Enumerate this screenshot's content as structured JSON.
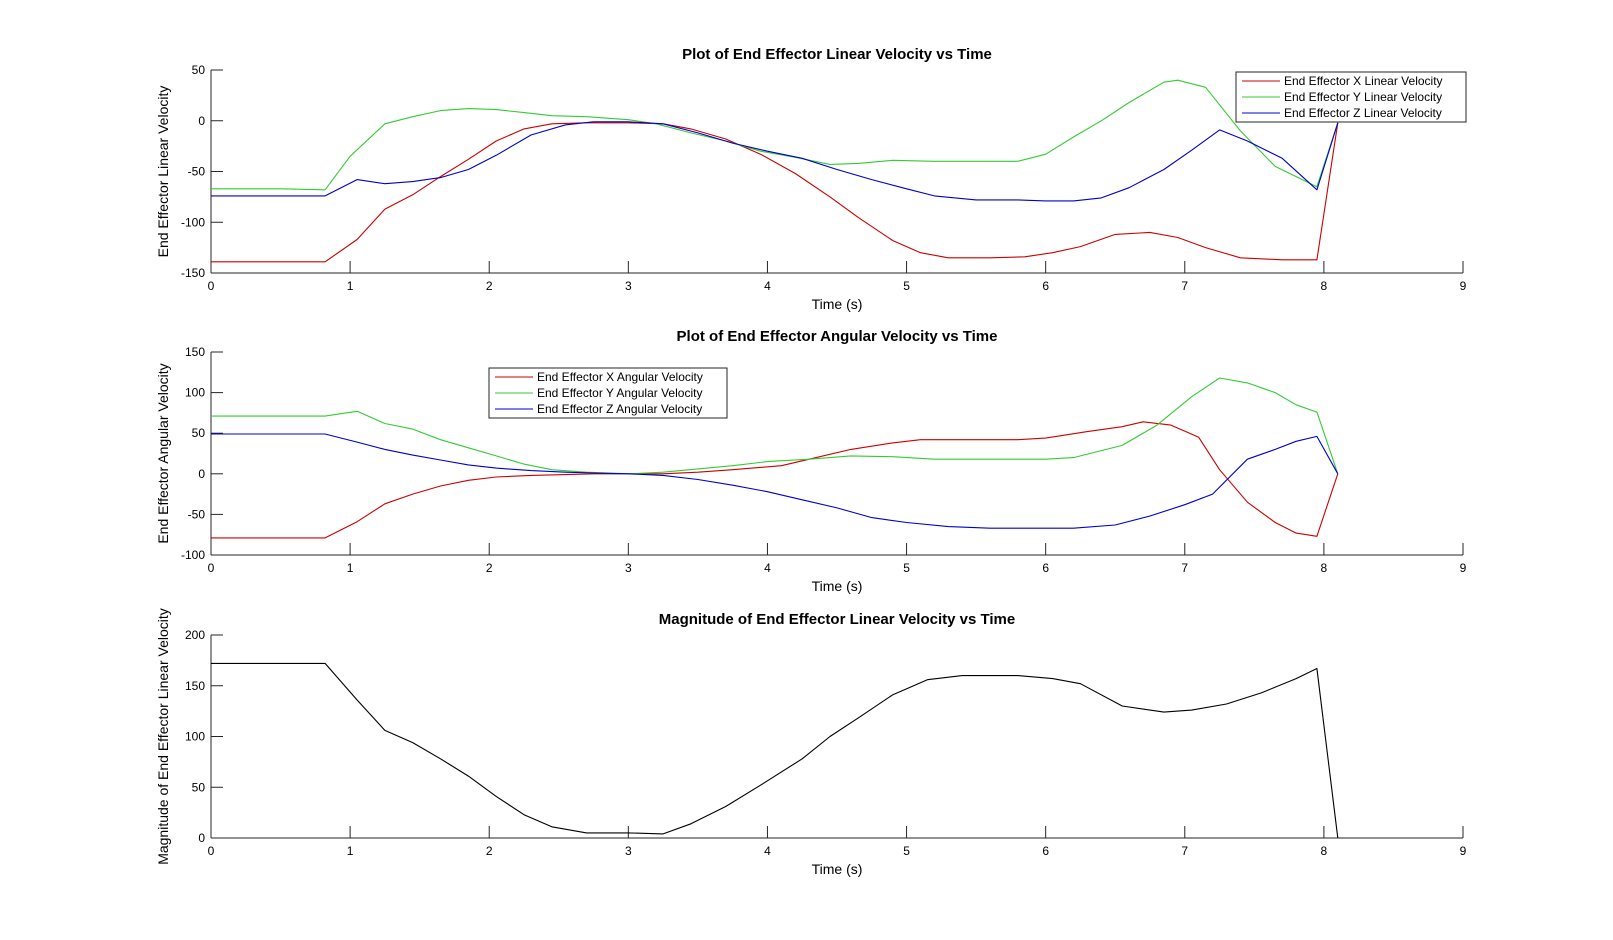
{
  "chart_data": [
    {
      "type": "line",
      "title": "Plot of End Effector Linear Velocity vs Time",
      "xlabel": "Time (s)",
      "ylabel": "End Effector Linear Velocity",
      "xlim": [
        0,
        9
      ],
      "ylim": [
        -150,
        50
      ],
      "xticks": [
        0,
        1,
        2,
        3,
        4,
        5,
        6,
        7,
        8,
        9
      ],
      "yticks": [
        -150,
        -100,
        -50,
        0,
        50
      ],
      "legend_position": "top-right",
      "series": [
        {
          "name": "End Effector X Linear Velocity",
          "color": "#cc0000",
          "x": [
            0,
            0.82,
            1.05,
            1.25,
            1.45,
            1.65,
            1.85,
            2.05,
            2.25,
            2.45,
            2.7,
            3.0,
            3.25,
            3.45,
            3.7,
            3.95,
            4.2,
            4.45,
            4.65,
            4.9,
            5.1,
            5.3,
            5.6,
            5.85,
            6.05,
            6.25,
            6.5,
            6.75,
            6.95,
            7.15,
            7.4,
            7.7,
            7.95,
            8.1
          ],
          "y": [
            -139,
            -139,
            -117,
            -87,
            -73,
            -55,
            -38,
            -20,
            -8,
            -3,
            -2,
            -2,
            -3,
            -8,
            -18,
            -33,
            -52,
            -75,
            -95,
            -118,
            -130,
            -135,
            -135,
            -134,
            -130,
            -124,
            -112,
            -110,
            -115,
            -125,
            -135,
            -137,
            -137,
            -2
          ]
        },
        {
          "name": "End Effector Y Linear Velocity",
          "color": "#33cc33",
          "x": [
            0,
            0.5,
            0.82,
            1.0,
            1.25,
            1.45,
            1.65,
            1.85,
            2.05,
            2.25,
            2.45,
            2.7,
            3.0,
            3.2,
            3.45,
            3.7,
            3.95,
            4.2,
            4.45,
            4.65,
            4.9,
            5.2,
            5.5,
            5.8,
            6.0,
            6.2,
            6.4,
            6.6,
            6.85,
            6.95,
            7.15,
            7.4,
            7.65,
            7.95,
            8.1
          ],
          "y": [
            -67,
            -67,
            -68,
            -35,
            -3,
            4,
            10,
            12,
            11,
            8,
            5,
            4,
            1,
            -3,
            -12,
            -20,
            -30,
            -36,
            -43,
            -42,
            -39,
            -40,
            -40,
            -40,
            -33,
            -16,
            0,
            18,
            38,
            40,
            33,
            -10,
            -45,
            -65,
            -2
          ]
        },
        {
          "name": "End Effector Z Linear Velocity",
          "color": "#0000cc",
          "x": [
            0,
            0.82,
            1.05,
            1.25,
            1.45,
            1.65,
            1.85,
            2.05,
            2.3,
            2.55,
            2.75,
            3.0,
            3.25,
            3.5,
            3.75,
            4.0,
            4.25,
            4.5,
            4.75,
            5.0,
            5.2,
            5.5,
            5.8,
            6.0,
            6.2,
            6.4,
            6.6,
            6.85,
            7.05,
            7.25,
            7.45,
            7.7,
            7.95,
            8.1
          ],
          "y": [
            -74,
            -74,
            -58,
            -62,
            -60,
            -56,
            -48,
            -34,
            -14,
            -4,
            -1,
            -1,
            -3,
            -12,
            -22,
            -30,
            -37,
            -48,
            -58,
            -67,
            -74,
            -78,
            -78,
            -79,
            -79,
            -76,
            -66,
            -48,
            -29,
            -9,
            -20,
            -37,
            -68,
            -2
          ]
        }
      ]
    },
    {
      "type": "line",
      "title": "Plot of End Effector Angular Velocity vs Time",
      "xlabel": "Time (s)",
      "ylabel": "End Effector Angular Velocity",
      "xlim": [
        0,
        9
      ],
      "ylim": [
        -100,
        150
      ],
      "xticks": [
        0,
        1,
        2,
        3,
        4,
        5,
        6,
        7,
        8,
        9
      ],
      "yticks": [
        -100,
        -50,
        0,
        50,
        100,
        150
      ],
      "legend_position": "top-left",
      "series": [
        {
          "name": "End Effector X Angular Velocity",
          "color": "#cc0000",
          "x": [
            0,
            0.82,
            1.05,
            1.25,
            1.45,
            1.65,
            1.85,
            2.05,
            2.3,
            2.55,
            2.75,
            3.0,
            3.25,
            3.5,
            3.75,
            4.1,
            4.3,
            4.6,
            4.9,
            5.1,
            5.4,
            5.8,
            6.0,
            6.3,
            6.55,
            6.7,
            6.9,
            7.1,
            7.25,
            7.45,
            7.65,
            7.8,
            7.95,
            8.1
          ],
          "y": [
            -79,
            -79,
            -59,
            -37,
            -25,
            -15,
            -8,
            -4,
            -2,
            -1,
            0,
            0,
            0,
            2,
            5,
            10,
            18,
            30,
            38,
            42,
            42,
            42,
            44,
            52,
            58,
            64,
            60,
            45,
            5,
            -35,
            -60,
            -73,
            -77,
            0
          ]
        },
        {
          "name": "End Effector Y Angular Velocity",
          "color": "#33cc33",
          "x": [
            0,
            0.5,
            0.82,
            1.05,
            1.25,
            1.45,
            1.65,
            1.85,
            2.05,
            2.25,
            2.45,
            2.7,
            3.0,
            3.25,
            3.5,
            3.75,
            4.0,
            4.3,
            4.6,
            4.9,
            5.2,
            5.5,
            5.8,
            6.0,
            6.2,
            6.55,
            6.8,
            7.05,
            7.25,
            7.45,
            7.65,
            7.8,
            7.95,
            8.1
          ],
          "y": [
            71,
            71,
            71,
            77,
            62,
            55,
            42,
            32,
            22,
            12,
            5,
            2,
            0,
            2,
            6,
            10,
            15,
            18,
            22,
            21,
            18,
            18,
            18,
            18,
            20,
            35,
            60,
            95,
            118,
            112,
            100,
            85,
            76,
            0
          ]
        },
        {
          "name": "End Effector Z Angular Velocity",
          "color": "#0000cc",
          "x": [
            0,
            0.82,
            1.05,
            1.25,
            1.45,
            1.65,
            1.85,
            2.05,
            2.3,
            2.55,
            2.75,
            3.0,
            3.25,
            3.5,
            3.75,
            4.0,
            4.25,
            4.5,
            4.75,
            5.0,
            5.3,
            5.6,
            5.9,
            6.2,
            6.5,
            6.75,
            7.0,
            7.2,
            7.45,
            7.65,
            7.8,
            7.95,
            8.1
          ],
          "y": [
            49,
            49,
            39,
            30,
            23,
            17,
            11,
            7,
            4,
            2,
            1,
            0,
            -2,
            -7,
            -14,
            -22,
            -32,
            -42,
            -54,
            -60,
            -65,
            -67,
            -67,
            -67,
            -63,
            -52,
            -38,
            -25,
            18,
            30,
            40,
            46,
            0
          ]
        }
      ]
    },
    {
      "type": "line",
      "title": "Magnitude of End Effector Linear Velocity vs Time",
      "xlabel": "Time (s)",
      "ylabel": "Magnitude of End Effector Linear Velocity",
      "xlim": [
        0,
        9
      ],
      "ylim": [
        0,
        200
      ],
      "xticks": [
        0,
        1,
        2,
        3,
        4,
        5,
        6,
        7,
        8,
        9
      ],
      "yticks": [
        0,
        50,
        100,
        150,
        200
      ],
      "series": [
        {
          "name": "",
          "color": "#000000",
          "x": [
            0,
            0.82,
            1.05,
            1.25,
            1.45,
            1.65,
            1.85,
            2.05,
            2.25,
            2.45,
            2.7,
            3.0,
            3.25,
            3.45,
            3.7,
            3.95,
            4.25,
            4.45,
            4.65,
            4.9,
            5.15,
            5.4,
            5.8,
            6.05,
            6.25,
            6.55,
            6.85,
            7.05,
            7.3,
            7.55,
            7.8,
            7.95,
            8.1
          ],
          "y": [
            172,
            172,
            136,
            106,
            94,
            78,
            61,
            41,
            23,
            11,
            5,
            5,
            4,
            14,
            31,
            52,
            78,
            100,
            118,
            141,
            156,
            160,
            160,
            157,
            152,
            130,
            124,
            126,
            132,
            143,
            157,
            167,
            0
          ]
        }
      ]
    }
  ]
}
